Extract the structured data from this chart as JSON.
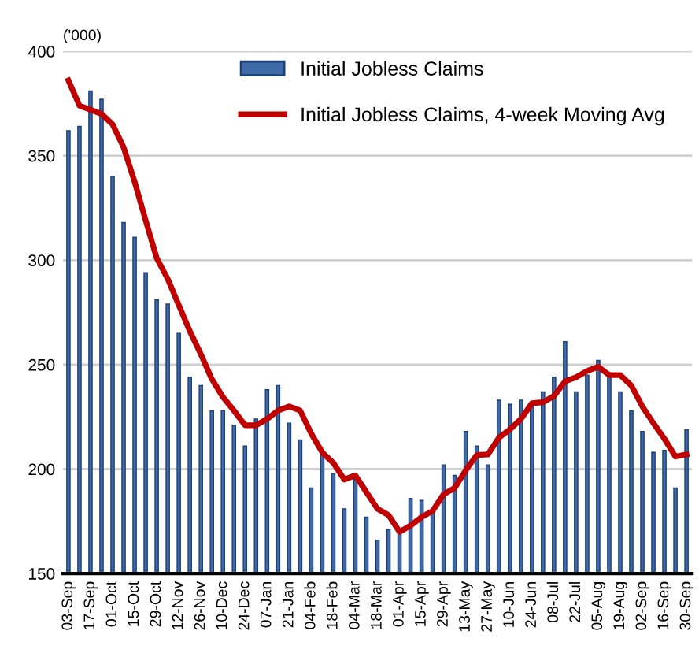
{
  "chart_data": {
    "type": "bar",
    "ylabel": "('000)",
    "categories": [
      "03-Sep",
      null,
      "17-Sep",
      null,
      "01-Oct",
      null,
      "15-Oct",
      null,
      "29-Oct",
      null,
      "12-Nov",
      null,
      "26-Nov",
      null,
      "10-Dec",
      null,
      "24-Dec",
      null,
      "07-Jan",
      null,
      "21-Jan",
      null,
      "04-Feb",
      null,
      "18-Feb",
      null,
      "04-Mar",
      null,
      "18-Mar",
      null,
      "01-Apr",
      null,
      "15-Apr",
      null,
      "29-Apr",
      null,
      "13-May",
      null,
      "27-May",
      null,
      "10-Jun",
      null,
      "24-Jun",
      null,
      "08-Jul",
      null,
      "22-Jul",
      null,
      "05-Aug",
      null,
      "19-Aug",
      null,
      "02-Sep",
      null,
      "16-Sep",
      null,
      "30-Sep"
    ],
    "series": [
      {
        "name": "Initial Jobless Claims",
        "color": "#3f6aa8",
        "values": [
          362,
          364,
          381,
          377,
          340,
          318,
          311,
          294,
          281,
          279,
          265,
          244,
          240,
          228,
          228,
          221,
          211,
          224,
          238,
          240,
          222,
          214,
          191,
          207,
          198,
          181,
          195,
          177,
          166,
          171,
          171,
          186,
          185,
          180,
          202,
          197,
          218,
          211,
          202,
          233,
          231,
          233,
          230,
          237,
          244,
          261,
          237,
          245,
          252,
          246,
          237,
          228,
          218,
          208,
          209,
          191,
          219
        ]
      },
      {
        "name": "Initial Jobless Claims, 4-week Moving Avg",
        "type": "line",
        "color": "#c00000",
        "values": [
          386,
          374,
          372,
          370,
          365,
          354,
          337.5,
          319,
          301,
          291,
          278.5,
          266,
          255,
          243,
          234.5,
          228,
          221,
          221,
          224,
          228,
          230,
          228,
          217,
          208,
          203,
          195,
          197,
          189,
          181,
          178,
          170,
          173,
          177,
          180,
          188,
          191,
          199.5,
          206.7,
          207,
          215,
          219,
          224,
          231.5,
          232,
          235,
          242,
          244,
          247,
          249,
          245,
          245,
          240,
          230,
          222,
          214.5,
          206,
          207
        ]
      }
    ],
    "ylim": [
      150,
      400
    ],
    "yticks": [
      150,
      200,
      250,
      300,
      350,
      400
    ],
    "grid": "y",
    "legend": "top"
  }
}
